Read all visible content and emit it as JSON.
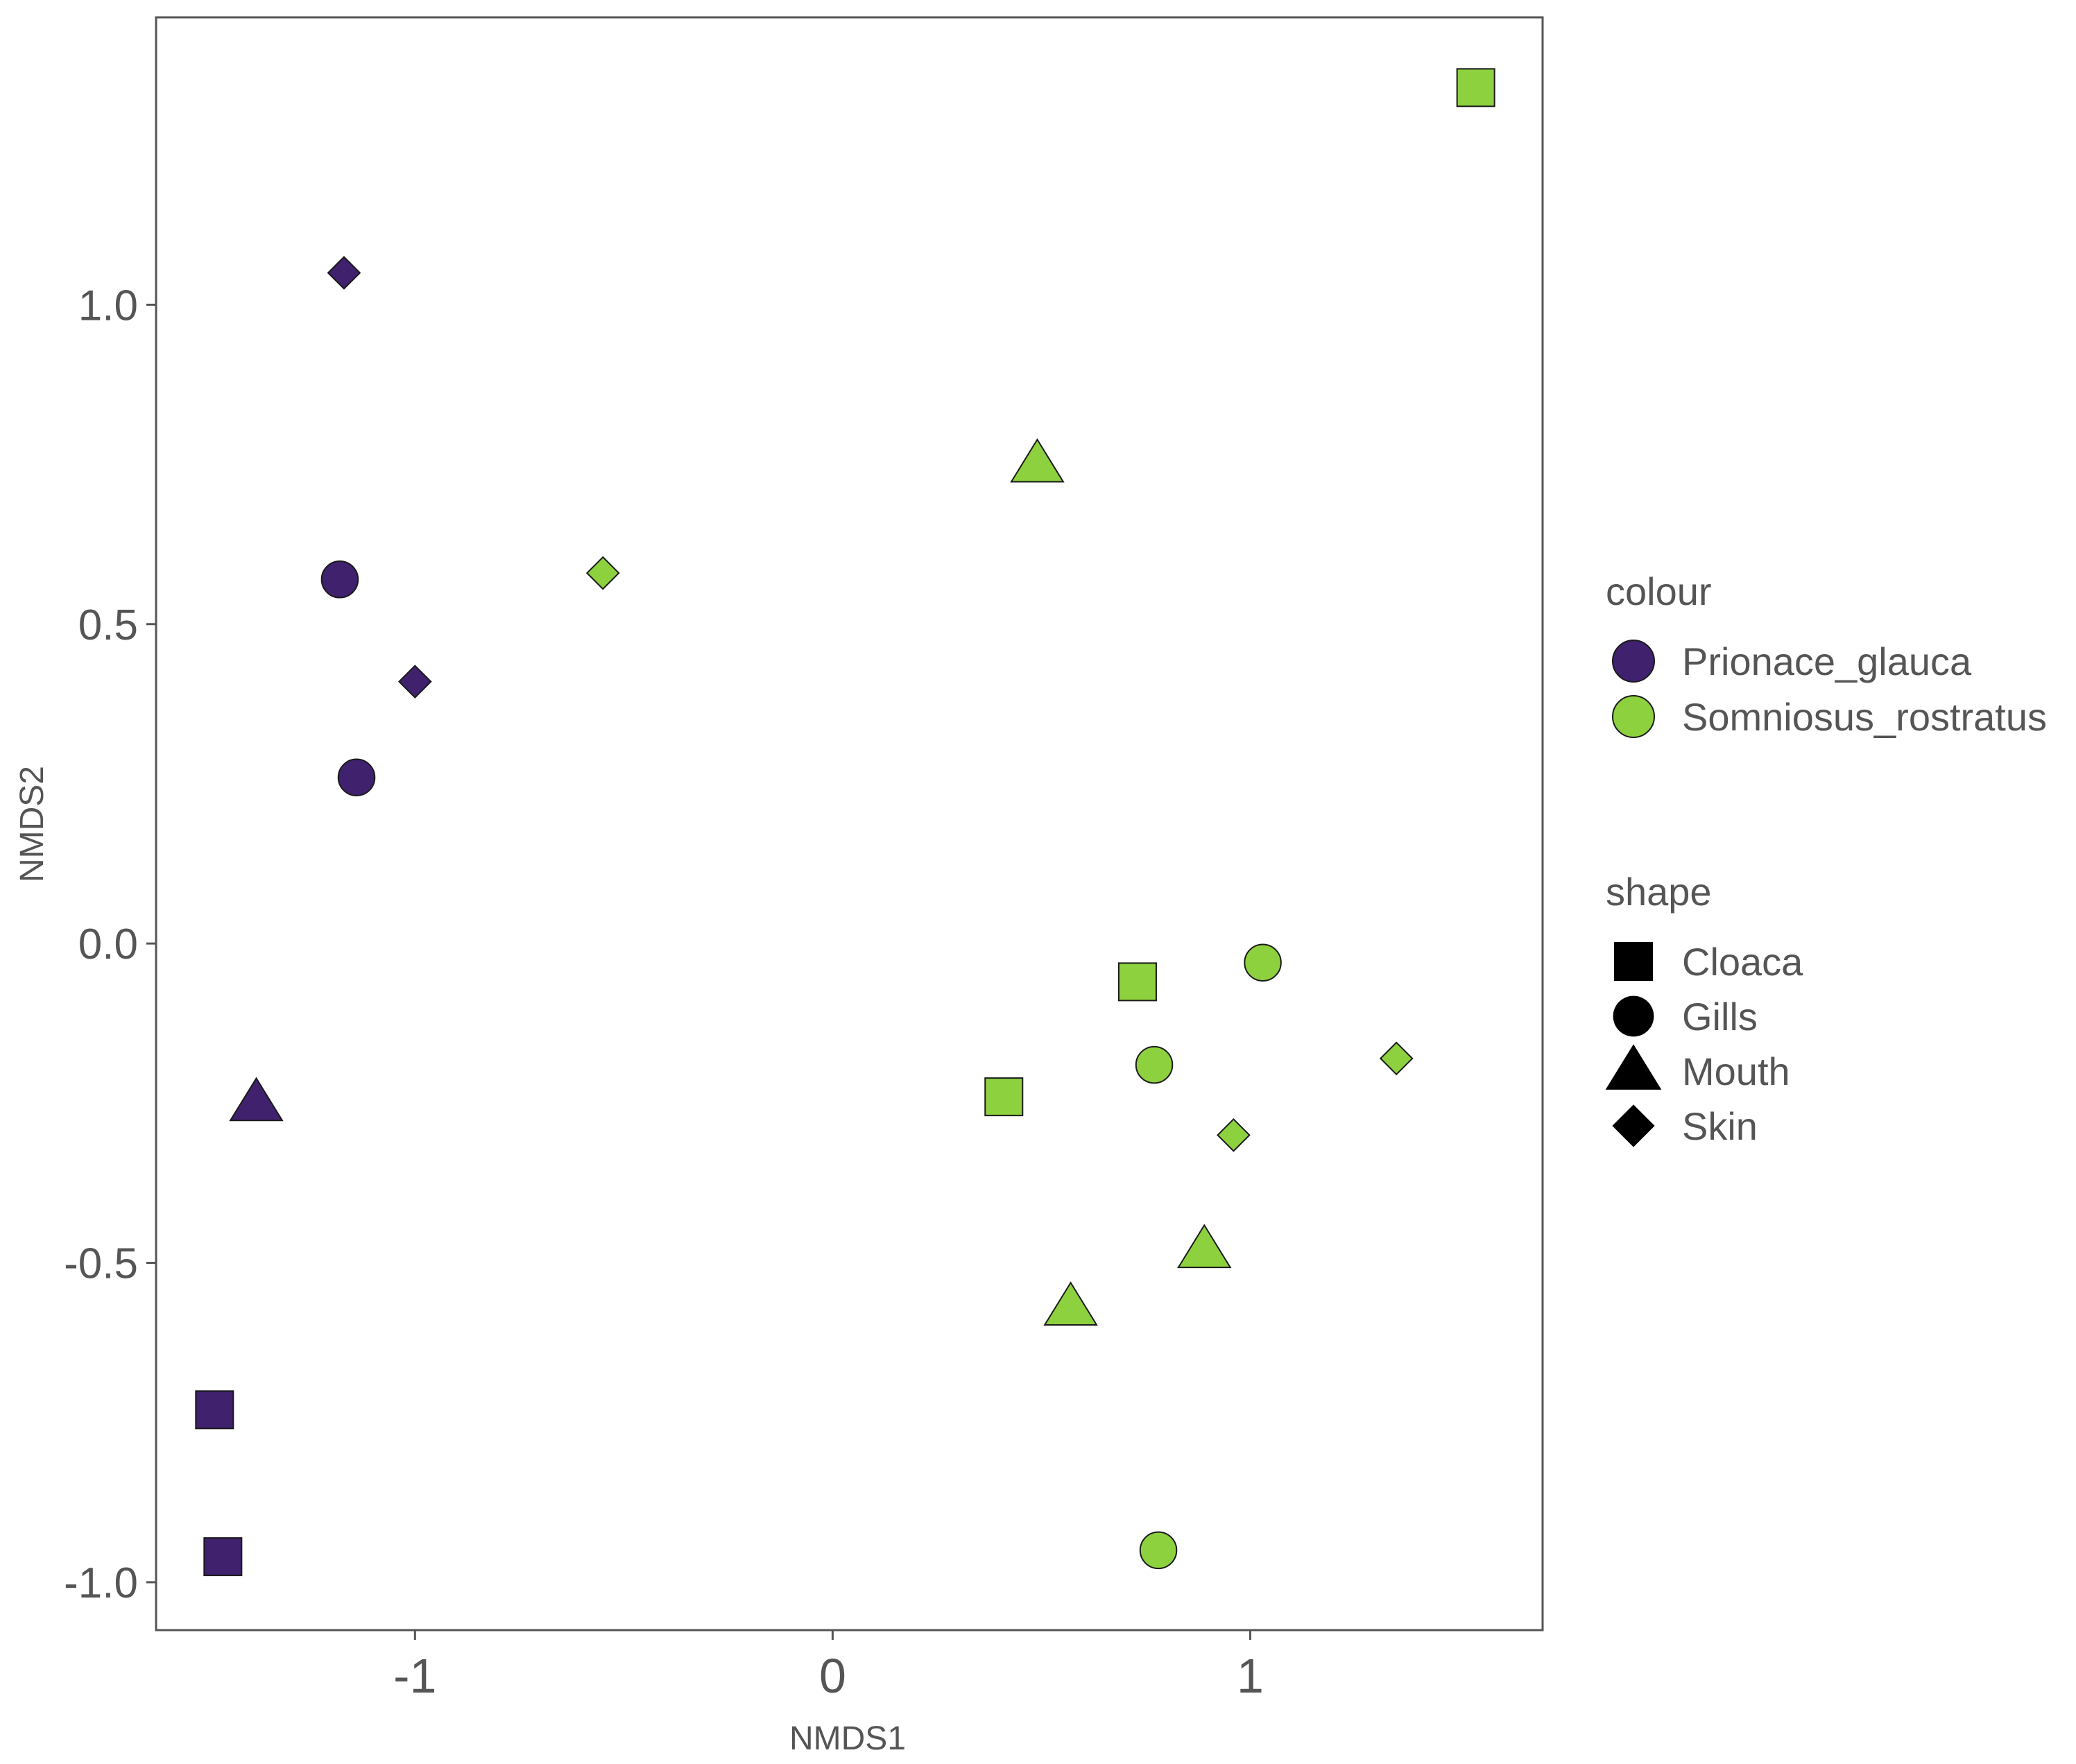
{
  "chart_data": {
    "type": "scatter",
    "title": "",
    "xlabel": "NMDS1",
    "ylabel": "NMDS2",
    "xlim": [
      -1.62,
      1.7
    ],
    "ylim": [
      -1.075,
      1.45
    ],
    "x_ticks": [
      -1,
      0,
      1
    ],
    "x_tick_labels": [
      "-1",
      "0",
      "1"
    ],
    "y_ticks": [
      -1.0,
      -0.5,
      0.0,
      0.5,
      1.0
    ],
    "y_tick_labels": [
      "-1.0",
      "-0.5",
      "0.0",
      "0.5",
      "1.0"
    ],
    "grid": false,
    "legend_position": "right",
    "colour_legend": {
      "title": "colour",
      "items": [
        {
          "label": "Prionace_glauca",
          "color": "#40216e"
        },
        {
          "label": "Somniosus_rostratus",
          "color": "#8ed13f"
        }
      ]
    },
    "shape_legend": {
      "title": "shape",
      "items": [
        {
          "label": "Cloaca",
          "shape": "square"
        },
        {
          "label": "Gills",
          "shape": "circle"
        },
        {
          "label": "Mouth",
          "shape": "triangle"
        },
        {
          "label": "Skin",
          "shape": "diamond"
        }
      ]
    },
    "points": [
      {
        "species": "Prionace_glauca",
        "tissue": "Skin",
        "x": -1.17,
        "y": 1.05
      },
      {
        "species": "Prionace_glauca",
        "tissue": "Gills",
        "x": -1.18,
        "y": 0.57
      },
      {
        "species": "Prionace_glauca",
        "tissue": "Skin",
        "x": -1.0,
        "y": 0.41
      },
      {
        "species": "Prionace_glauca",
        "tissue": "Gills",
        "x": -1.14,
        "y": 0.26
      },
      {
        "species": "Prionace_glauca",
        "tissue": "Mouth",
        "x": -1.38,
        "y": -0.25
      },
      {
        "species": "Prionace_glauca",
        "tissue": "Cloaca",
        "x": -1.48,
        "y": -0.73
      },
      {
        "species": "Prionace_glauca",
        "tissue": "Cloaca",
        "x": -1.46,
        "y": -0.96
      },
      {
        "species": "Somniosus_rostratus",
        "tissue": "Cloaca",
        "x": 1.54,
        "y": 1.34
      },
      {
        "species": "Somniosus_rostratus",
        "tissue": "Mouth",
        "x": 0.49,
        "y": 0.75
      },
      {
        "species": "Somniosus_rostratus",
        "tissue": "Skin",
        "x": -0.55,
        "y": 0.58
      },
      {
        "species": "Somniosus_rostratus",
        "tissue": "Gills",
        "x": 1.03,
        "y": -0.03
      },
      {
        "species": "Somniosus_rostratus",
        "tissue": "Cloaca",
        "x": 0.73,
        "y": -0.06
      },
      {
        "species": "Somniosus_rostratus",
        "tissue": "Skin",
        "x": 1.35,
        "y": -0.18
      },
      {
        "species": "Somniosus_rostratus",
        "tissue": "Gills",
        "x": 0.77,
        "y": -0.19
      },
      {
        "species": "Somniosus_rostratus",
        "tissue": "Cloaca",
        "x": 0.41,
        "y": -0.24
      },
      {
        "species": "Somniosus_rostratus",
        "tissue": "Skin",
        "x": 0.96,
        "y": -0.3
      },
      {
        "species": "Somniosus_rostratus",
        "tissue": "Mouth",
        "x": 0.89,
        "y": -0.48
      },
      {
        "species": "Somniosus_rostratus",
        "tissue": "Mouth",
        "x": 0.57,
        "y": -0.57
      },
      {
        "species": "Somniosus_rostratus",
        "tissue": "Gills",
        "x": 0.78,
        "y": -0.95
      }
    ]
  }
}
